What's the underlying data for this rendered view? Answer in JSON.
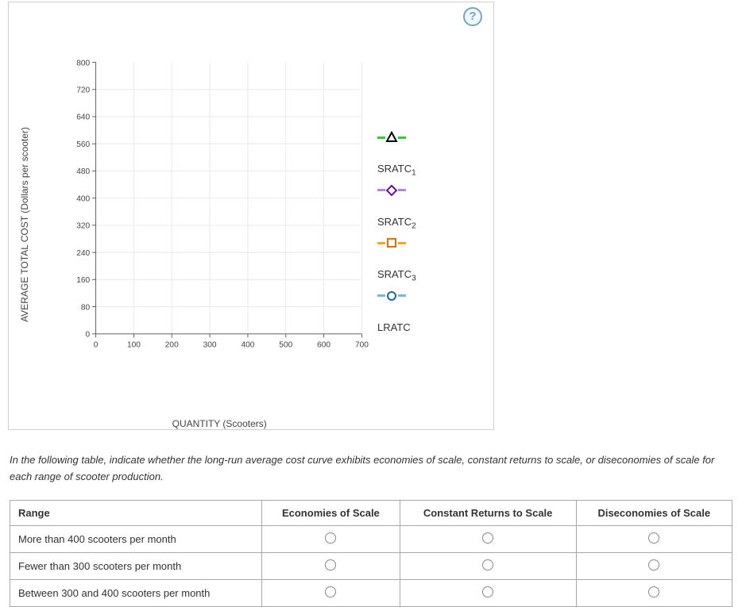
{
  "panel": {
    "help_icon": "?"
  },
  "chart": {
    "type": "scatter-empty",
    "y_axis_label": "AVERAGE TOTAL COST (Dollars per scooter)",
    "x_axis_label": "QUANTITY (Scooters)",
    "x_ticks": [
      0,
      100,
      200,
      300,
      400,
      500,
      600,
      700
    ],
    "y_ticks": [
      0,
      80,
      160,
      240,
      320,
      400,
      480,
      560,
      640,
      720,
      800
    ],
    "xlim": [
      0,
      700
    ],
    "ylim": [
      0,
      800
    ],
    "axis_color": "#555555",
    "grid_color": "#e8e8e8",
    "background_color": "#ffffff",
    "tick_fontsize": 11
  },
  "legend": {
    "items": [
      {
        "label_prefix": "SRATC",
        "label_sub": "1",
        "marker": "triangle",
        "marker_fill": "#ffffff",
        "marker_stroke": "#000000",
        "line_color": "#33cc33"
      },
      {
        "label_prefix": "SRATC",
        "label_sub": "2",
        "marker": "diamond",
        "marker_fill": "#ffffff",
        "marker_stroke": "#6a0dad",
        "line_color": "#b088d8"
      },
      {
        "label_prefix": "SRATC",
        "label_sub": "3",
        "marker": "square",
        "marker_fill": "#ffffff",
        "marker_stroke": "#e07000",
        "line_color": "#f5a623"
      },
      {
        "label_prefix": "LRATC",
        "label_sub": "",
        "marker": "circle",
        "marker_fill": "#ffffff",
        "marker_stroke": "#1a6aa0",
        "line_color": "#7ab8d8"
      }
    ],
    "marker_size": 12,
    "line_segment_width": 10
  },
  "instruction_text": "In the following table, indicate whether the long-run average cost curve exhibits economies of scale, constant returns to scale, or diseconomies of scale for each range of scooter production.",
  "table": {
    "headers": [
      "Range",
      "Economies of Scale",
      "Constant Returns to Scale",
      "Diseconomies of Scale"
    ],
    "rows": [
      {
        "range": "More than 400 scooters per month"
      },
      {
        "range": "Fewer than 300 scooters per month"
      },
      {
        "range": "Between 300 and 400 scooters per month"
      }
    ]
  }
}
